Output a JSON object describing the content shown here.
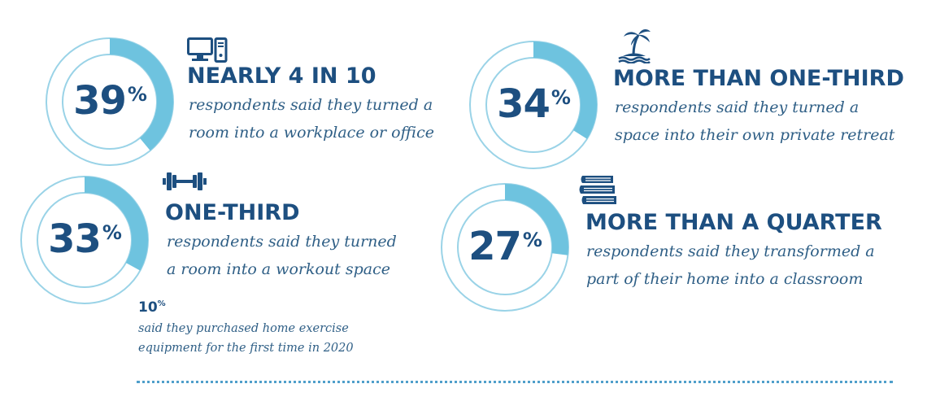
{
  "colors": {
    "ring_fill": "#6ec3df",
    "ring_outline": "#9ad3e7",
    "navy": "#1d4f80",
    "text": "#2f5f86",
    "divider": "#4f9fcb"
  },
  "chart_data": {
    "type": "donut",
    "series": [
      {
        "value": 39,
        "display": "39",
        "unit": "%",
        "headline": "NEARLY 4 IN 10",
        "description": [
          "respondents said they turned a",
          "room into a workplace or office"
        ],
        "icon": "computer-icon"
      },
      {
        "value": 34,
        "display": "34",
        "unit": "%",
        "headline": "MORE THAN ONE-THIRD",
        "description": [
          "respondents said they turned a",
          "space into their own private retreat"
        ],
        "icon": "palm-island-icon"
      },
      {
        "value": 33,
        "display": "33",
        "unit": "%",
        "headline": "ONE-THIRD",
        "description": [
          "respondents said they turned",
          "a room into a workout space"
        ],
        "icon": "dumbbell-icon"
      },
      {
        "value": 27,
        "display": "27",
        "unit": "%",
        "headline": "MORE THAN A QUARTER",
        "description": [
          "respondents said they transformed a",
          "part of their home into a classroom"
        ],
        "icon": "books-icon"
      }
    ],
    "note": {
      "value": "10",
      "unit": "%",
      "description": [
        "said they purchased home exercise",
        "equipment for the first time in 2020"
      ]
    }
  }
}
